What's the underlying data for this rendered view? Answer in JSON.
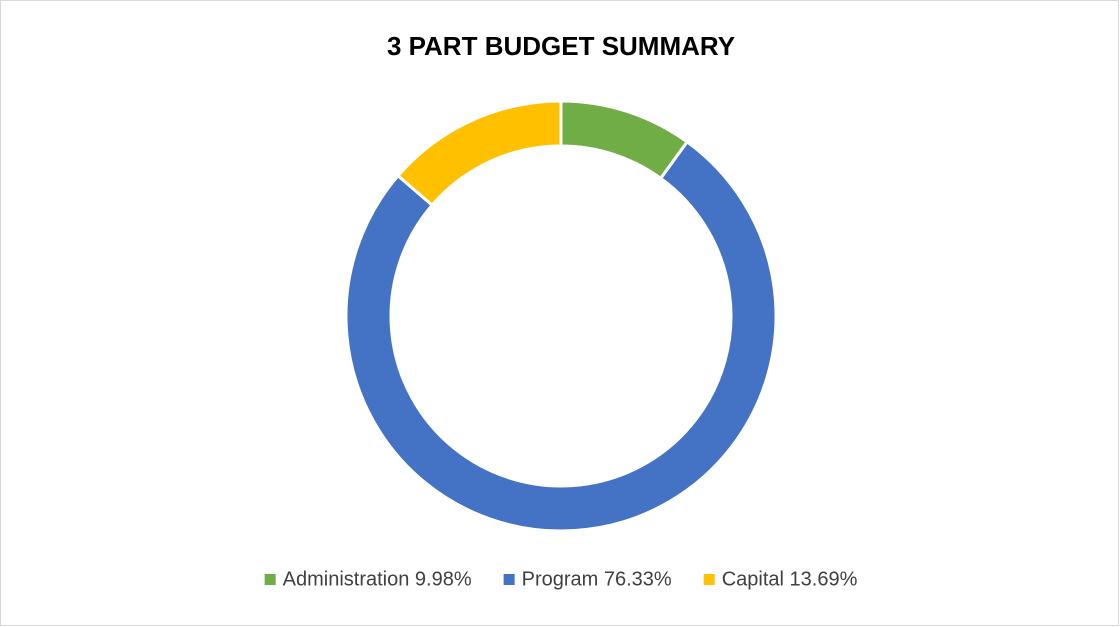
{
  "chart_data": {
    "type": "donut",
    "title": "3 PART BUDGET SUMMARY",
    "categories": [
      "Administration 9.98%",
      "Program 76.33%",
      "Capital 13.69%"
    ],
    "values": [
      9.98,
      76.33,
      13.69
    ],
    "colors": [
      "#70ad47",
      "#4472c4",
      "#ffc000"
    ],
    "legend": "bottom"
  }
}
